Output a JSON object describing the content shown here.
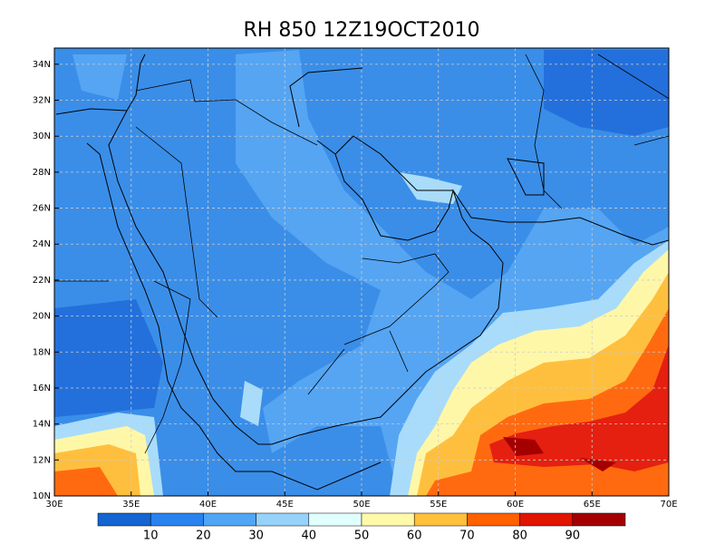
{
  "map": {
    "title": "RH 850 12Z19OCT2010",
    "lonlim": [
      30,
      70
    ],
    "latlim": [
      10,
      34.9
    ],
    "lonticks": [
      {
        "value": 30,
        "label": "30E"
      },
      {
        "value": 35,
        "label": "35E"
      },
      {
        "value": 40,
        "label": "40E"
      },
      {
        "value": 45,
        "label": "45E"
      },
      {
        "value": 50,
        "label": "50E"
      },
      {
        "value": 55,
        "label": "55E"
      },
      {
        "value": 60,
        "label": "60E"
      },
      {
        "value": 65,
        "label": "65E"
      },
      {
        "value": 70,
        "label": "70E"
      }
    ],
    "latticks": [
      {
        "value": 10,
        "label": "10N"
      },
      {
        "value": 12,
        "label": "12N"
      },
      {
        "value": 14,
        "label": "14N"
      },
      {
        "value": 16,
        "label": "16N"
      },
      {
        "value": 18,
        "label": "18N"
      },
      {
        "value": 20,
        "label": "20N"
      },
      {
        "value": 22,
        "label": "22N"
      },
      {
        "value": 24,
        "label": "24N"
      },
      {
        "value": 26,
        "label": "26N"
      },
      {
        "value": 28,
        "label": "28N"
      },
      {
        "value": 30,
        "label": "30N"
      },
      {
        "value": 32,
        "label": "32N"
      },
      {
        "value": 34,
        "label": "34N"
      }
    ],
    "grid": true,
    "colorbar": {
      "colors": [
        "#1464d2",
        "#2882f0",
        "#50a5f5",
        "#96d2fa",
        "#e1ffff",
        "#fffaaa",
        "#ffc03c",
        "#ff6000",
        "#e11400",
        "#a50000"
      ],
      "levels": [
        10,
        20,
        30,
        40,
        50,
        60,
        70,
        80,
        90
      ]
    }
  }
}
